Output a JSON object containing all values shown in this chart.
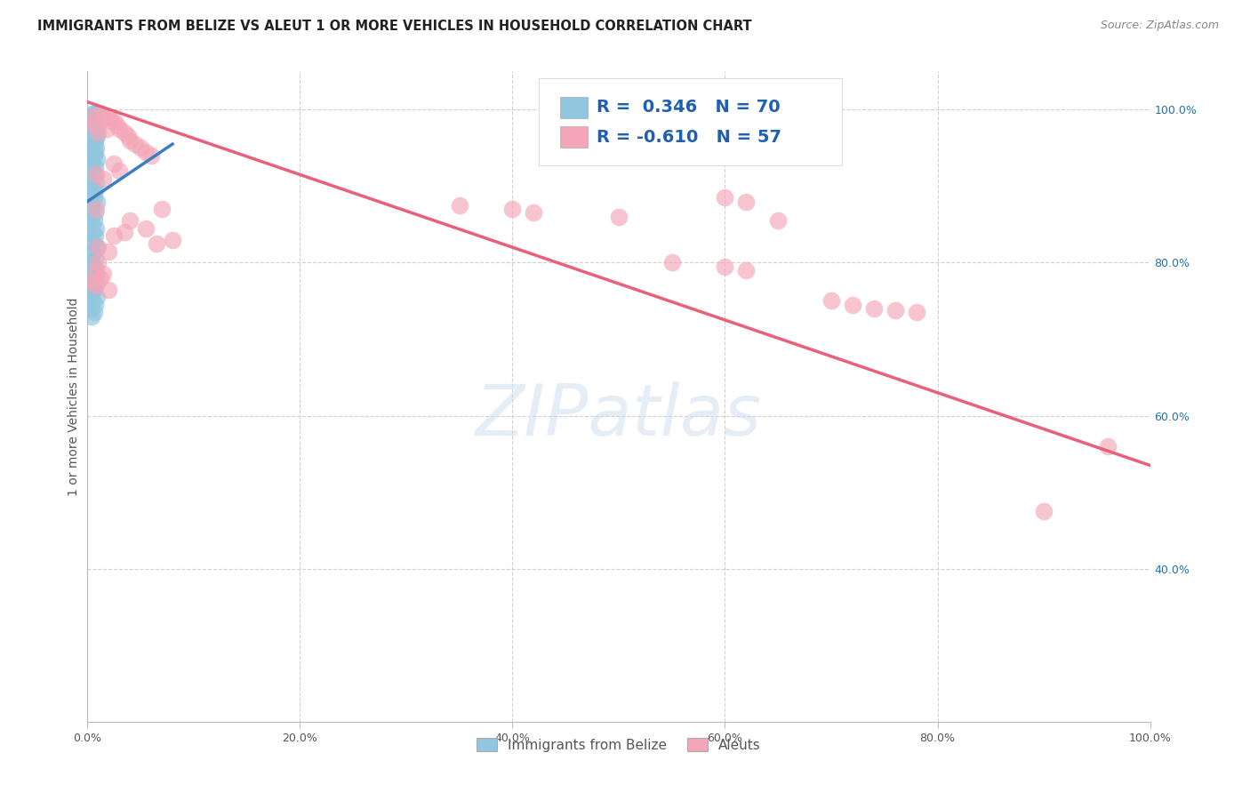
{
  "title": "IMMIGRANTS FROM BELIZE VS ALEUT 1 OR MORE VEHICLES IN HOUSEHOLD CORRELATION CHART",
  "source": "Source: ZipAtlas.com",
  "ylabel": "1 or more Vehicles in Household",
  "xlim": [
    0.0,
    1.0
  ],
  "ylim": [
    0.2,
    1.05
  ],
  "xtick_vals": [
    0.0,
    0.2,
    0.4,
    0.6,
    0.8,
    1.0
  ],
  "xtick_labels": [
    "0.0%",
    "20.0%",
    "40.0%",
    "60.0%",
    "80.0%",
    "100.0%"
  ],
  "ytick_vals": [
    0.4,
    0.6,
    0.8,
    1.0
  ],
  "ytick_labels": [
    "40.0%",
    "60.0%",
    "80.0%",
    "100.0%"
  ],
  "legend_labels": [
    "Immigrants from Belize",
    "Aleuts"
  ],
  "blue_color": "#92c5de",
  "pink_color": "#f4a6b8",
  "blue_line_color": "#3a7fc1",
  "pink_line_color": "#e8607a",
  "blue_scatter": [
    [
      0.004,
      0.995
    ],
    [
      0.006,
      0.995
    ],
    [
      0.008,
      0.995
    ],
    [
      0.007,
      0.99
    ],
    [
      0.005,
      0.99
    ],
    [
      0.003,
      0.99
    ],
    [
      0.009,
      0.985
    ],
    [
      0.006,
      0.985
    ],
    [
      0.004,
      0.985
    ],
    [
      0.01,
      0.98
    ],
    [
      0.007,
      0.98
    ],
    [
      0.005,
      0.975
    ],
    [
      0.003,
      0.975
    ],
    [
      0.008,
      0.97
    ],
    [
      0.006,
      0.97
    ],
    [
      0.004,
      0.965
    ],
    [
      0.009,
      0.965
    ],
    [
      0.005,
      0.96
    ],
    [
      0.007,
      0.96
    ],
    [
      0.003,
      0.955
    ],
    [
      0.006,
      0.955
    ],
    [
      0.004,
      0.95
    ],
    [
      0.008,
      0.95
    ],
    [
      0.005,
      0.945
    ],
    [
      0.007,
      0.945
    ],
    [
      0.003,
      0.94
    ],
    [
      0.006,
      0.94
    ],
    [
      0.009,
      0.935
    ],
    [
      0.004,
      0.935
    ],
    [
      0.005,
      0.93
    ],
    [
      0.007,
      0.925
    ],
    [
      0.003,
      0.92
    ],
    [
      0.006,
      0.915
    ],
    [
      0.004,
      0.91
    ],
    [
      0.008,
      0.905
    ],
    [
      0.005,
      0.9
    ],
    [
      0.007,
      0.895
    ],
    [
      0.003,
      0.89
    ],
    [
      0.006,
      0.885
    ],
    [
      0.009,
      0.88
    ],
    [
      0.004,
      0.875
    ],
    [
      0.005,
      0.87
    ],
    [
      0.007,
      0.865
    ],
    [
      0.003,
      0.86
    ],
    [
      0.006,
      0.855
    ],
    [
      0.004,
      0.85
    ],
    [
      0.008,
      0.845
    ],
    [
      0.005,
      0.84
    ],
    [
      0.007,
      0.835
    ],
    [
      0.003,
      0.83
    ],
    [
      0.006,
      0.825
    ],
    [
      0.009,
      0.82
    ],
    [
      0.004,
      0.815
    ],
    [
      0.005,
      0.81
    ],
    [
      0.007,
      0.805
    ],
    [
      0.003,
      0.8
    ],
    [
      0.006,
      0.795
    ],
    [
      0.004,
      0.79
    ],
    [
      0.008,
      0.785
    ],
    [
      0.005,
      0.78
    ],
    [
      0.007,
      0.775
    ],
    [
      0.003,
      0.77
    ],
    [
      0.006,
      0.765
    ],
    [
      0.004,
      0.76
    ],
    [
      0.009,
      0.755
    ],
    [
      0.005,
      0.75
    ],
    [
      0.007,
      0.745
    ],
    [
      0.003,
      0.74
    ],
    [
      0.006,
      0.735
    ],
    [
      0.004,
      0.73
    ]
  ],
  "pink_scatter": [
    [
      0.004,
      0.99
    ],
    [
      0.006,
      0.98
    ],
    [
      0.012,
      0.995
    ],
    [
      0.015,
      0.99
    ],
    [
      0.02,
      0.99
    ],
    [
      0.022,
      0.985
    ],
    [
      0.025,
      0.985
    ],
    [
      0.028,
      0.98
    ],
    [
      0.03,
      0.975
    ],
    [
      0.035,
      0.97
    ],
    [
      0.038,
      0.965
    ],
    [
      0.04,
      0.96
    ],
    [
      0.01,
      0.97
    ],
    [
      0.018,
      0.975
    ],
    [
      0.045,
      0.955
    ],
    [
      0.05,
      0.95
    ],
    [
      0.055,
      0.945
    ],
    [
      0.06,
      0.94
    ],
    [
      0.025,
      0.93
    ],
    [
      0.03,
      0.92
    ],
    [
      0.008,
      0.915
    ],
    [
      0.015,
      0.91
    ],
    [
      0.008,
      0.87
    ],
    [
      0.07,
      0.87
    ],
    [
      0.04,
      0.855
    ],
    [
      0.055,
      0.845
    ],
    [
      0.035,
      0.84
    ],
    [
      0.025,
      0.835
    ],
    [
      0.08,
      0.83
    ],
    [
      0.065,
      0.825
    ],
    [
      0.01,
      0.82
    ],
    [
      0.02,
      0.815
    ],
    [
      0.01,
      0.8
    ],
    [
      0.008,
      0.79
    ],
    [
      0.015,
      0.785
    ],
    [
      0.012,
      0.78
    ],
    [
      0.005,
      0.775
    ],
    [
      0.008,
      0.77
    ],
    [
      0.02,
      0.765
    ],
    [
      0.55,
      0.995
    ],
    [
      0.6,
      0.885
    ],
    [
      0.62,
      0.88
    ],
    [
      0.35,
      0.875
    ],
    [
      0.4,
      0.87
    ],
    [
      0.42,
      0.865
    ],
    [
      0.5,
      0.86
    ],
    [
      0.65,
      0.855
    ],
    [
      0.55,
      0.8
    ],
    [
      0.6,
      0.795
    ],
    [
      0.62,
      0.79
    ],
    [
      0.7,
      0.75
    ],
    [
      0.72,
      0.745
    ],
    [
      0.74,
      0.74
    ],
    [
      0.76,
      0.738
    ],
    [
      0.78,
      0.735
    ],
    [
      0.96,
      0.56
    ],
    [
      0.9,
      0.475
    ]
  ],
  "blue_trend_x": [
    0.0,
    0.08
  ],
  "blue_trend_y": [
    0.88,
    0.955
  ],
  "pink_trend_x": [
    0.0,
    1.0
  ],
  "pink_trend_y": [
    1.01,
    0.535
  ],
  "watermark": "ZIPatlas",
  "background_color": "#ffffff",
  "grid_color": "#d0d0d0"
}
